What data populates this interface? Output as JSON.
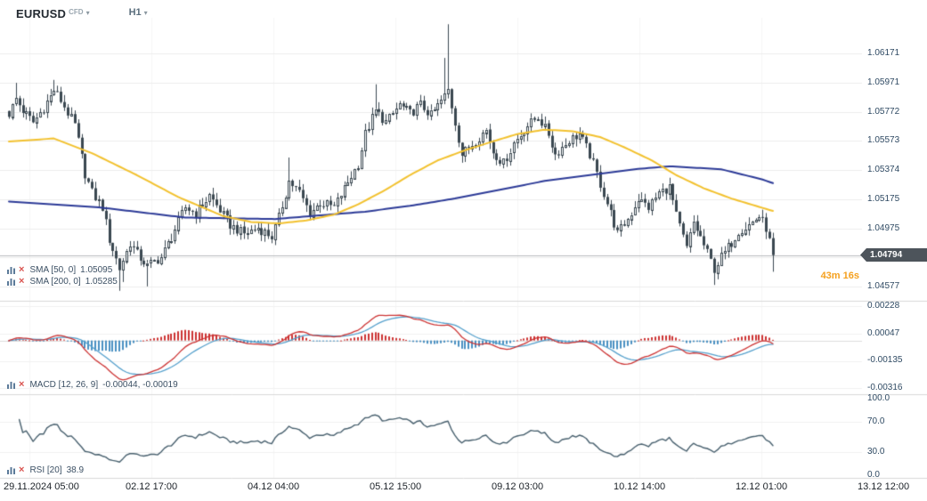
{
  "header": {
    "symbol": "EURUSD",
    "market_type": "CFD",
    "timeframe": "H1"
  },
  "icons": {
    "caret_down": "▾",
    "remove_x": "×"
  },
  "price_badge": "1.04794",
  "countdown": "43m 16s",
  "legends": {
    "sma50": {
      "label": "SMA [50, 0]",
      "value": "1.05095"
    },
    "sma200": {
      "label": "SMA [200, 0]",
      "value": "1.05285"
    },
    "macd": {
      "label": "MACD [12, 26, 9]",
      "value": "-0.00044, -0.00019"
    },
    "rsi": {
      "label": "RSI [20]",
      "value": "38.9"
    }
  },
  "colors": {
    "sma50": "#f2c12e",
    "sma200": "#2c3a97",
    "candle": "#3a4750",
    "macd_line": "#cc3333",
    "macd_signal": "#55a0cc",
    "hist_pos": "#cc3333",
    "hist_neg": "#4a90c2",
    "rsi_line": "#48606e",
    "current_price_line": "#b7babd",
    "badge_bg": "#4d545b",
    "countdown": "#f5a01e",
    "axis_text": "#2f4a63",
    "grid": "#ededed"
  },
  "chart_data": {
    "type": "candlestick",
    "symbol": "EURUSD",
    "timeframe": "H1",
    "last_close": 1.04794,
    "price_axis": {
      "top_value": 1.06171,
      "step": 0.00199,
      "labels": [
        "1.06171",
        "1.05971",
        "1.05772",
        "1.05573",
        "1.05374",
        "1.05175",
        "1.04975",
        "",
        "1.04577"
      ]
    },
    "macd_axis": {
      "labels": [
        "0.00228",
        "0.00047",
        "-0.00135",
        "-0.00316"
      ],
      "values": [
        0.00228,
        0.00047,
        -0.00135,
        -0.00316
      ]
    },
    "rsi_axis": {
      "labels": [
        "100.0",
        "70.0",
        "30.0",
        "0.0"
      ],
      "values": [
        100,
        70,
        30,
        0
      ]
    },
    "time_axis": {
      "labels": [
        "29.11.2024 05:00",
        "02.12 17:00",
        "04.12 04:00",
        "05.12 15:00",
        "09.12 03:00",
        "10.12 14:00",
        "12.12 01:00",
        "13.12 12:00"
      ]
    },
    "indicators": {
      "sma": [
        {
          "period": 50,
          "shift": 0,
          "last": 1.05095
        },
        {
          "period": 200,
          "shift": 0,
          "last": 1.05285
        }
      ],
      "macd": {
        "fast": 12,
        "slow": 26,
        "signal": 9,
        "last": [
          -0.00044,
          -0.00019
        ]
      },
      "rsi": {
        "period": 20,
        "last": 38.9
      }
    },
    "candle_count": 222,
    "close_anchors": [
      [
        0,
        1.0576
      ],
      [
        2,
        1.0586
      ],
      [
        4,
        1.0578
      ],
      [
        7,
        1.057
      ],
      [
        10,
        1.058
      ],
      [
        13,
        1.0592
      ],
      [
        15,
        1.0585
      ],
      [
        19,
        1.0568
      ],
      [
        22,
        1.0535
      ],
      [
        24,
        1.0522
      ],
      [
        27,
        1.0512
      ],
      [
        29,
        1.049
      ],
      [
        32,
        1.047
      ],
      [
        35,
        1.0488
      ],
      [
        37,
        1.048
      ],
      [
        40,
        1.0472
      ],
      [
        44,
        1.0478
      ],
      [
        47,
        1.0492
      ],
      [
        51,
        1.0512
      ],
      [
        54,
        1.0508
      ],
      [
        58,
        1.052
      ],
      [
        61,
        1.051
      ],
      [
        64,
        1.05
      ],
      [
        68,
        1.0494
      ],
      [
        72,
        1.0498
      ],
      [
        76,
        1.0492
      ],
      [
        78,
        1.0505
      ],
      [
        81,
        1.053
      ],
      [
        84,
        1.0522
      ],
      [
        87,
        1.0508
      ],
      [
        90,
        1.0515
      ],
      [
        94,
        1.0512
      ],
      [
        97,
        1.0525
      ],
      [
        101,
        1.0542
      ],
      [
        103,
        1.0562
      ],
      [
        106,
        1.0578
      ],
      [
        109,
        1.057
      ],
      [
        113,
        1.0582
      ],
      [
        116,
        1.0576
      ],
      [
        119,
        1.0582
      ],
      [
        122,
        1.0575
      ],
      [
        126,
        1.0588
      ],
      [
        127,
        1.0592
      ],
      [
        129,
        1.057
      ],
      [
        131,
        1.0548
      ],
      [
        135,
        1.0558
      ],
      [
        138,
        1.0565
      ],
      [
        140,
        1.055
      ],
      [
        143,
        1.0542
      ],
      [
        146,
        1.0556
      ],
      [
        150,
        1.0568
      ],
      [
        153,
        1.0574
      ],
      [
        156,
        1.0562
      ],
      [
        158,
        1.0548
      ],
      [
        162,
        1.0558
      ],
      [
        165,
        1.0562
      ],
      [
        168,
        1.0548
      ],
      [
        171,
        1.0528
      ],
      [
        174,
        1.0508
      ],
      [
        176,
        1.0494
      ],
      [
        179,
        1.0504
      ],
      [
        182,
        1.0518
      ],
      [
        185,
        1.0512
      ],
      [
        188,
        1.0522
      ],
      [
        191,
        1.0526
      ],
      [
        193,
        1.0506
      ],
      [
        196,
        1.0484
      ],
      [
        198,
        1.0502
      ],
      [
        201,
        1.0486
      ],
      [
        204,
        1.047
      ],
      [
        206,
        1.0478
      ],
      [
        209,
        1.0488
      ],
      [
        211,
        1.0496
      ],
      [
        214,
        1.05
      ],
      [
        217,
        1.0506
      ],
      [
        219,
        1.0498
      ],
      [
        221,
        1.04794
      ]
    ],
    "wick_overrides": {
      "2": {
        "h": 1.0597
      },
      "13": {
        "h": 1.0599
      },
      "32": {
        "l": 1.0455
      },
      "33": {
        "l": 1.0461
      },
      "40": {
        "l": 1.0458
      },
      "81": {
        "h": 1.0546
      },
      "106": {
        "h": 1.0596
      },
      "126": {
        "h": 1.0614
      },
      "127": {
        "h": 1.0637
      },
      "204": {
        "l": 1.0459
      },
      "221": {
        "l": 1.0468
      }
    },
    "sma50_anchors": [
      [
        0,
        1.0557
      ],
      [
        13,
        1.0559
      ],
      [
        24,
        1.0549
      ],
      [
        37,
        1.0534
      ],
      [
        49,
        1.0519
      ],
      [
        62,
        1.0506
      ],
      [
        70,
        1.0502
      ],
      [
        78,
        1.0501
      ],
      [
        86,
        1.0503
      ],
      [
        94,
        1.0507
      ],
      [
        101,
        1.0514
      ],
      [
        109,
        1.0524
      ],
      [
        116,
        1.0534
      ],
      [
        124,
        1.0544
      ],
      [
        132,
        1.0551
      ],
      [
        140,
        1.0557
      ],
      [
        147,
        1.0562
      ],
      [
        155,
        1.0565
      ],
      [
        163,
        1.0564
      ],
      [
        171,
        1.056
      ],
      [
        178,
        1.0553
      ],
      [
        186,
        1.0544
      ],
      [
        193,
        1.0534
      ],
      [
        201,
        1.0525
      ],
      [
        209,
        1.0518
      ],
      [
        216,
        1.0513
      ],
      [
        221,
        1.05095
      ]
    ],
    "sma200_anchors": [
      [
        0,
        1.0516
      ],
      [
        26,
        1.0512
      ],
      [
        51,
        1.0505
      ],
      [
        77,
        1.0504
      ],
      [
        103,
        1.0509
      ],
      [
        116,
        1.0513
      ],
      [
        129,
        1.0518
      ],
      [
        142,
        1.0524
      ],
      [
        155,
        1.053
      ],
      [
        168,
        1.0534
      ],
      [
        181,
        1.0538
      ],
      [
        191,
        1.054
      ],
      [
        206,
        1.0538
      ],
      [
        218,
        1.0531
      ],
      [
        221,
        1.05285
      ]
    ]
  }
}
